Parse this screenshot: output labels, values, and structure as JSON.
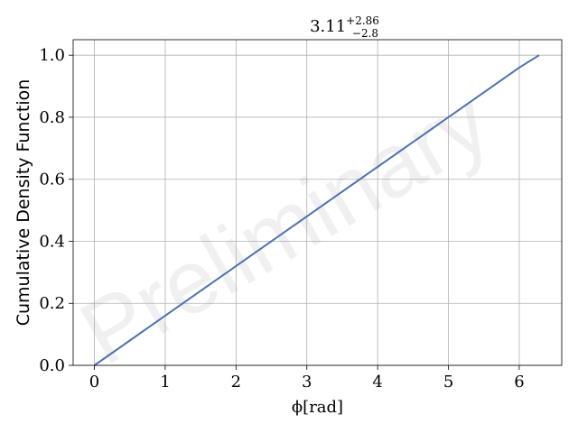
{
  "chart_data": {
    "type": "line",
    "title": {
      "main": "3.11",
      "sup": "+2.86",
      "sub": "−2.8"
    },
    "xlabel": "ϕ[rad]",
    "ylabel": "Cumulative Density Function",
    "xlim": [
      -0.3,
      6.6
    ],
    "ylim": [
      0.0,
      1.05
    ],
    "xticks": [
      0,
      1,
      2,
      3,
      4,
      5,
      6
    ],
    "yticks": [
      0.0,
      0.2,
      0.4,
      0.6,
      0.8,
      1.0
    ],
    "xtick_labels": [
      "0",
      "1",
      "2",
      "3",
      "4",
      "5",
      "6"
    ],
    "ytick_labels": [
      "0.0",
      "0.2",
      "0.4",
      "0.6",
      "0.8",
      "1.0"
    ],
    "grid": true,
    "watermark": "Preliminary",
    "series": [
      {
        "color": "#4c72b0",
        "x": [
          0.0,
          0.25,
          0.5,
          0.75,
          1.0,
          1.25,
          1.5,
          1.75,
          2.0,
          2.25,
          2.5,
          2.75,
          3.0,
          3.25,
          3.5,
          3.75,
          4.0,
          4.25,
          4.5,
          4.75,
          5.0,
          5.25,
          5.5,
          5.75,
          6.0,
          6.28
        ],
        "y": [
          0.0,
          0.04,
          0.08,
          0.12,
          0.16,
          0.2,
          0.24,
          0.28,
          0.32,
          0.36,
          0.4,
          0.44,
          0.48,
          0.52,
          0.56,
          0.6,
          0.64,
          0.68,
          0.72,
          0.76,
          0.8,
          0.84,
          0.88,
          0.92,
          0.96,
          1.0
        ]
      }
    ]
  }
}
